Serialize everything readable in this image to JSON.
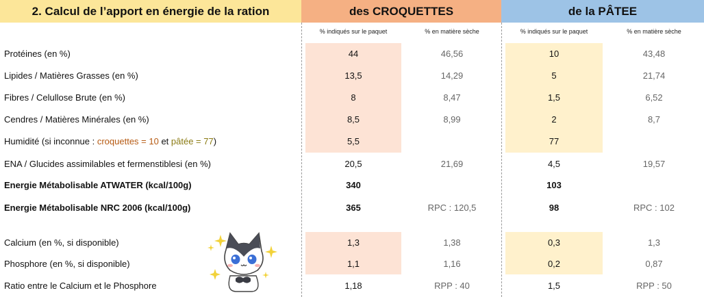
{
  "header": {
    "title": "2. Calcul de l’apport en énergie de la ration",
    "croquettes": "des CROQUETTES",
    "patee": "de la PÂTEE"
  },
  "subheaders": {
    "indiques": "% indiqués sur le paquet",
    "matiere_seche": "% en matière sèche"
  },
  "rows": [
    {
      "label": "Protéines (en %)",
      "croq_paquet": "44",
      "croq_ms": "46,56",
      "patee_paquet": "10",
      "patee_ms": "43,48"
    },
    {
      "label": "Lipides  / Matières Grasses (en %)",
      "croq_paquet": "13,5",
      "croq_ms": "14,29",
      "patee_paquet": "5",
      "patee_ms": "21,74"
    },
    {
      "label": "Fibres / Celullose Brute (en %)",
      "croq_paquet": "8",
      "croq_ms": "8,47",
      "patee_paquet": "1,5",
      "patee_ms": "6,52"
    },
    {
      "label": "Cendres / Matières Minérales (en %)",
      "croq_paquet": "8,5",
      "croq_ms": "8,99",
      "patee_paquet": "2",
      "patee_ms": "8,7"
    },
    {
      "label_parts": [
        "Humidité (si inconnue : ",
        "croquettes = 10",
        " et ",
        "pâtée = 77",
        ")"
      ],
      "croq_paquet": "5,5",
      "croq_ms": "",
      "patee_paquet": "77",
      "patee_ms": ""
    },
    {
      "label": "ENA  / Glucides assimilables et fermenstiblesi (en %)",
      "croq_paquet": "20,5",
      "croq_ms": "21,69",
      "patee_paquet": "4,5",
      "patee_ms": "19,57"
    },
    {
      "label": "Energie Métabolisable ATWATER (kcal/100g)",
      "croq_paquet": "340",
      "croq_ms": "",
      "patee_paquet": "103",
      "patee_ms": ""
    },
    {
      "label": "Energie Métabolisable NRC 2006 (kcal/100g)",
      "croq_paquet": "365",
      "croq_ms": "RPC : 120,5",
      "patee_paquet": "98",
      "patee_ms": "RPC : 102"
    },
    {
      "label": "Calcium (en %, si disponible)",
      "croq_paquet": "1,3",
      "croq_ms": "1,38",
      "patee_paquet": "0,3",
      "patee_ms": "1,3"
    },
    {
      "label": "Phosphore (en %, si disponible)",
      "croq_paquet": "1,1",
      "croq_ms": "1,16",
      "patee_paquet": "0,2",
      "patee_ms": "0,87"
    },
    {
      "label": "Ratio entre le Calcium et le Phosphore",
      "croq_paquet": "1,18",
      "croq_ms": "RPP : 40",
      "patee_paquet": "1,5",
      "patee_ms": "RPP : 50"
    }
  ],
  "colors": {
    "title_bg": "#fce699",
    "croquettes_bg": "#f5b083",
    "patee_bg": "#9dc3e6",
    "peach_cell": "#fde3d5",
    "yellow_cell": "#fff1cc"
  },
  "icons": {
    "mascot": "cat-mascot-icon"
  }
}
